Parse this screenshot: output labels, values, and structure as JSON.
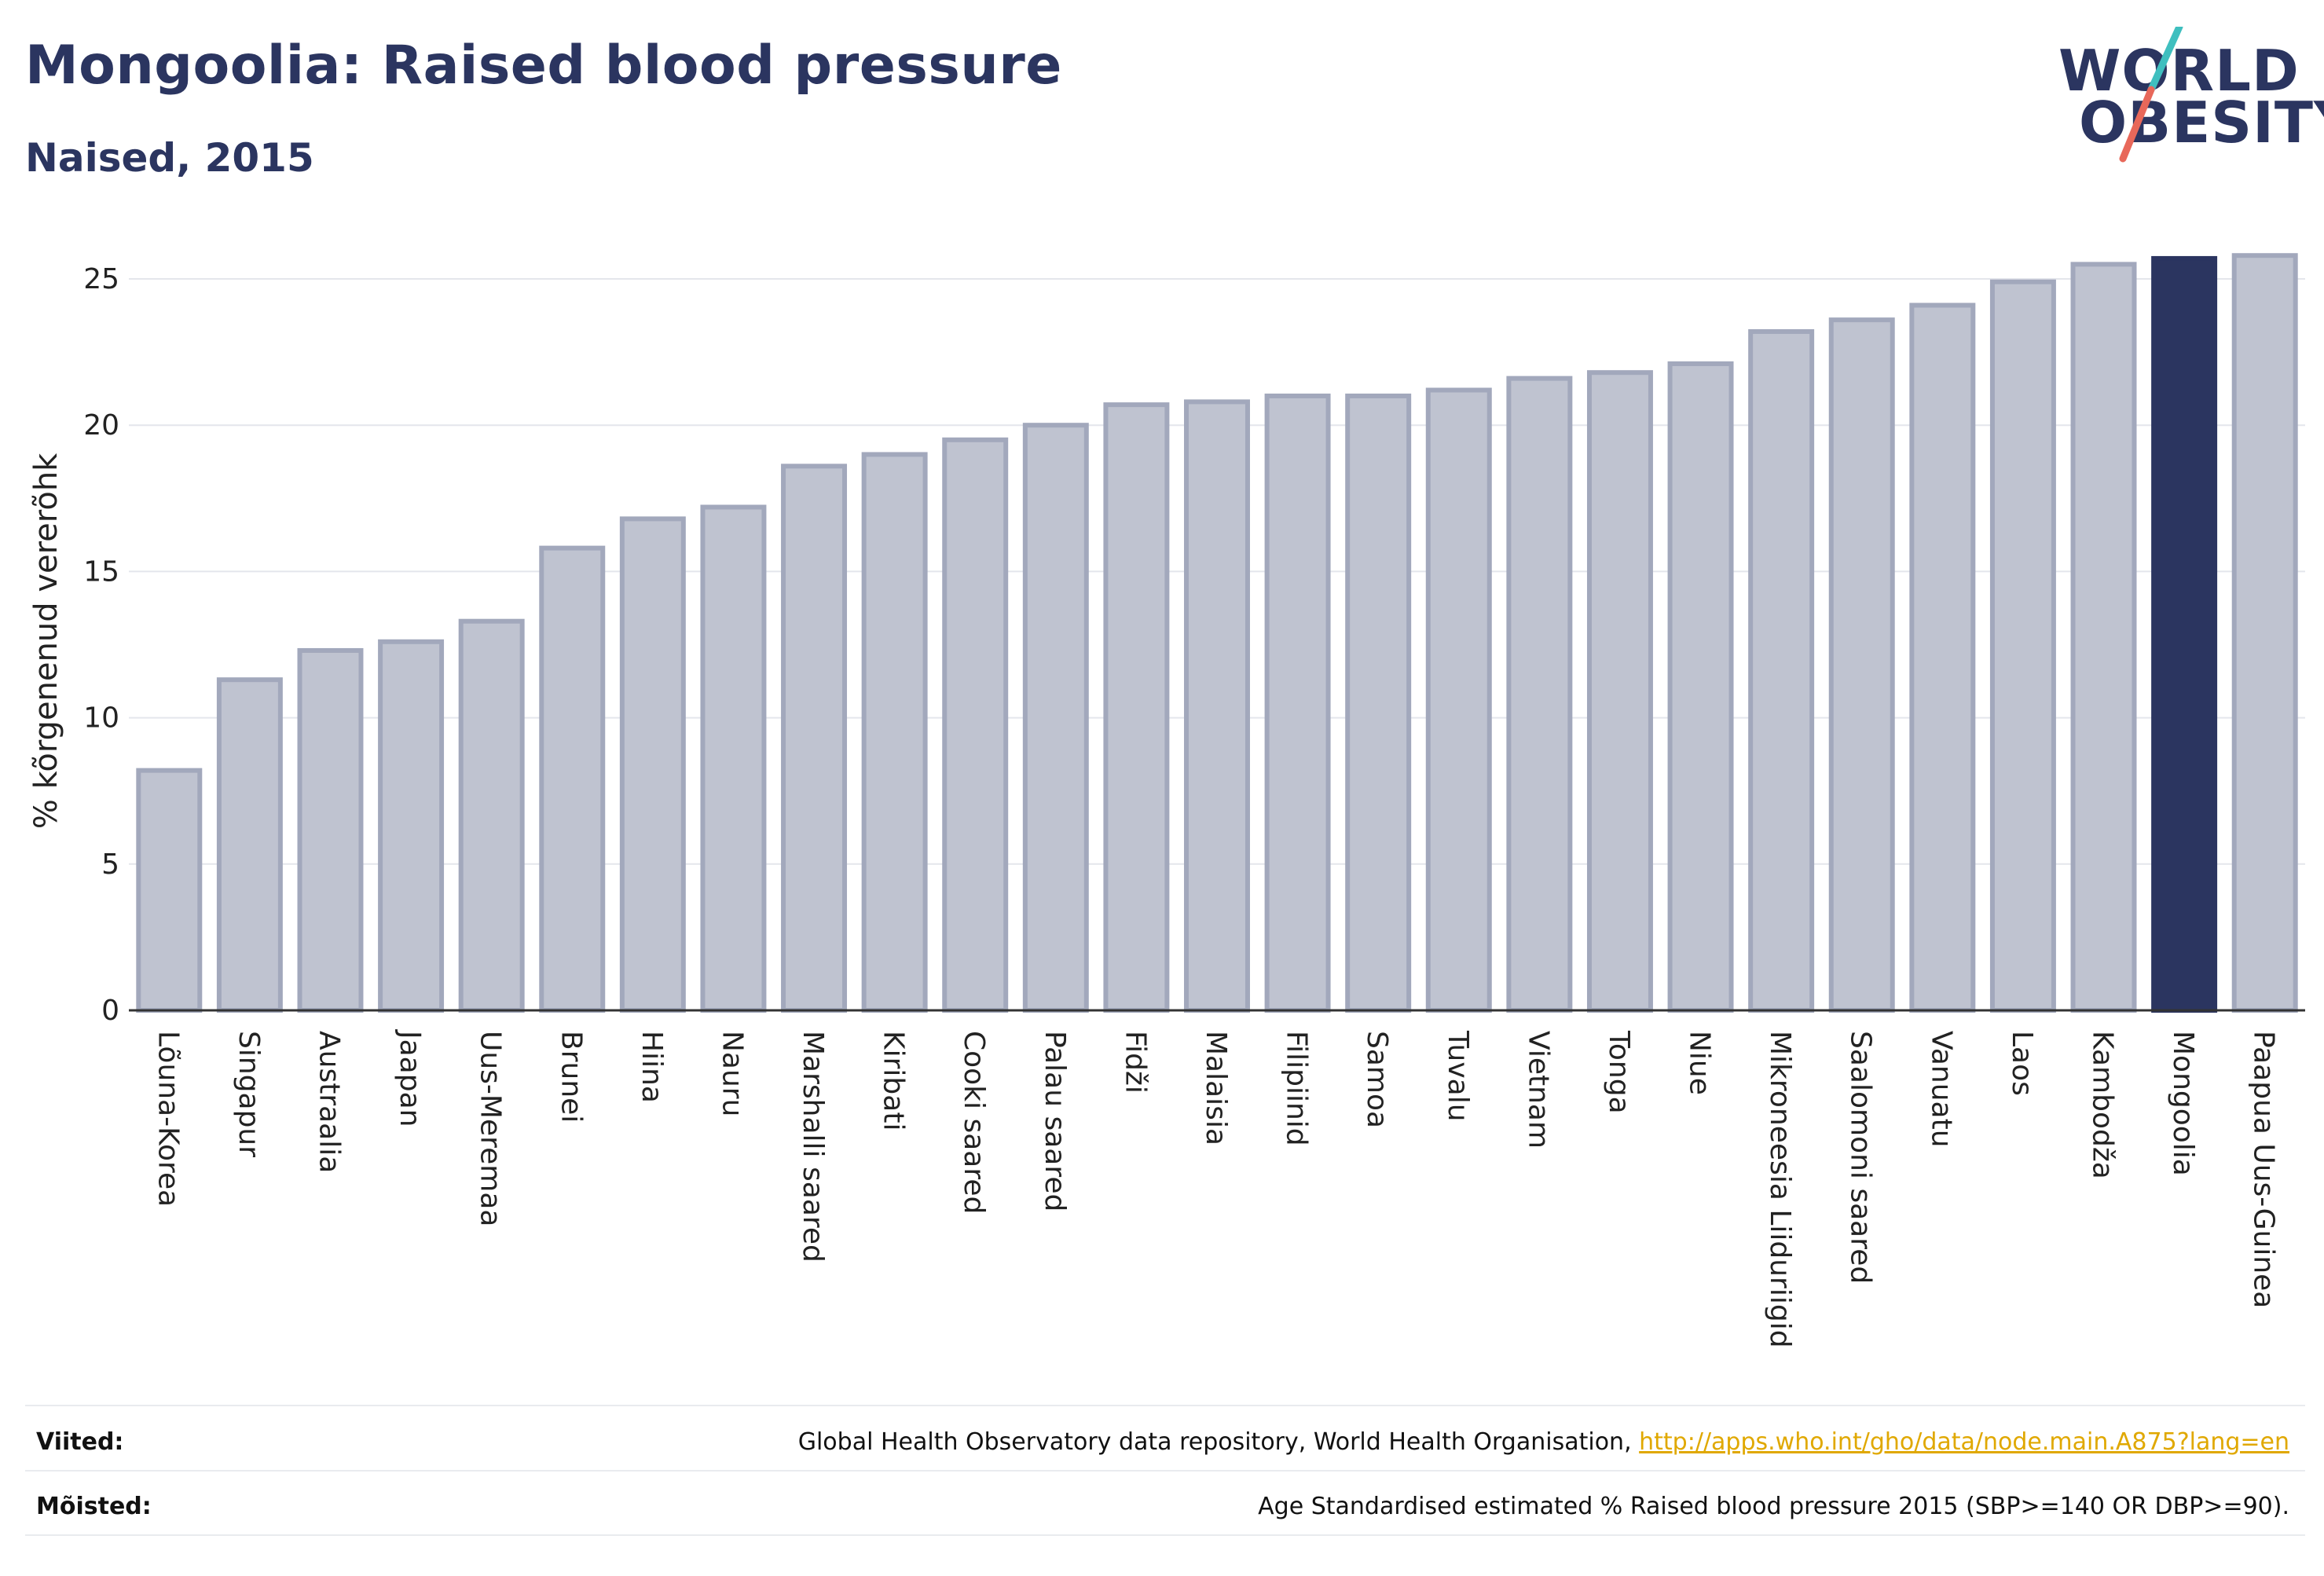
{
  "header": {
    "title": "Mongoolia: Raised blood pressure",
    "subtitle": "Naised, 2015"
  },
  "logo": {
    "line1": "WORLD",
    "line2": "OBESITY",
    "accent_colors": [
      "#3fbfbf",
      "#e8685a"
    ]
  },
  "chart_data": {
    "type": "bar",
    "ylabel": "% kõrgenenud vererõhk",
    "ylim": [
      0,
      26
    ],
    "yticks": [
      0,
      5,
      10,
      15,
      20,
      25
    ],
    "grid": true,
    "highlight": "Mongoolia",
    "colors": {
      "bar": "#bfc3d0",
      "bar_border": "#a2a8bc",
      "highlight": "#2b3560",
      "grid": "#e4e6ec",
      "axis": "#333333"
    },
    "categories": [
      "Lõuna-Korea",
      "Singapur",
      "Austraalia",
      "Jaapan",
      "Uus-Meremaa",
      "Brunei",
      "Hiina",
      "Nauru",
      "Marshalli saared",
      "Kiribati",
      "Cooki saared",
      "Palau saared",
      "Fidži",
      "Malaisia",
      "Filipiinid",
      "Samoa",
      "Tuvalu",
      "Vietnam",
      "Tonga",
      "Niue",
      "Mikroneesia Liiduriigid",
      "Saalomoni saared",
      "Vanuatu",
      "Laos",
      "Kambodža",
      "Mongoolia",
      "Paapua Uus-Guinea"
    ],
    "values": [
      8.2,
      11.3,
      12.3,
      12.6,
      13.3,
      15.8,
      16.8,
      17.2,
      18.6,
      19.0,
      19.5,
      20.0,
      20.7,
      20.8,
      21.0,
      21.0,
      21.2,
      21.6,
      21.8,
      22.1,
      23.2,
      23.6,
      24.1,
      24.9,
      25.5,
      25.7,
      25.8
    ]
  },
  "footer": {
    "sources_label": "Viited:",
    "sources_text": "Global Health Observatory data repository, World Health Organisation, ",
    "sources_link": "http://apps.who.int/gho/data/node.main.A875?lang=en",
    "definitions_label": "Mõisted:",
    "definitions_text": "Age Standardised estimated % Raised blood pressure 2015 (SBP>=140 OR DBP>=90)."
  }
}
